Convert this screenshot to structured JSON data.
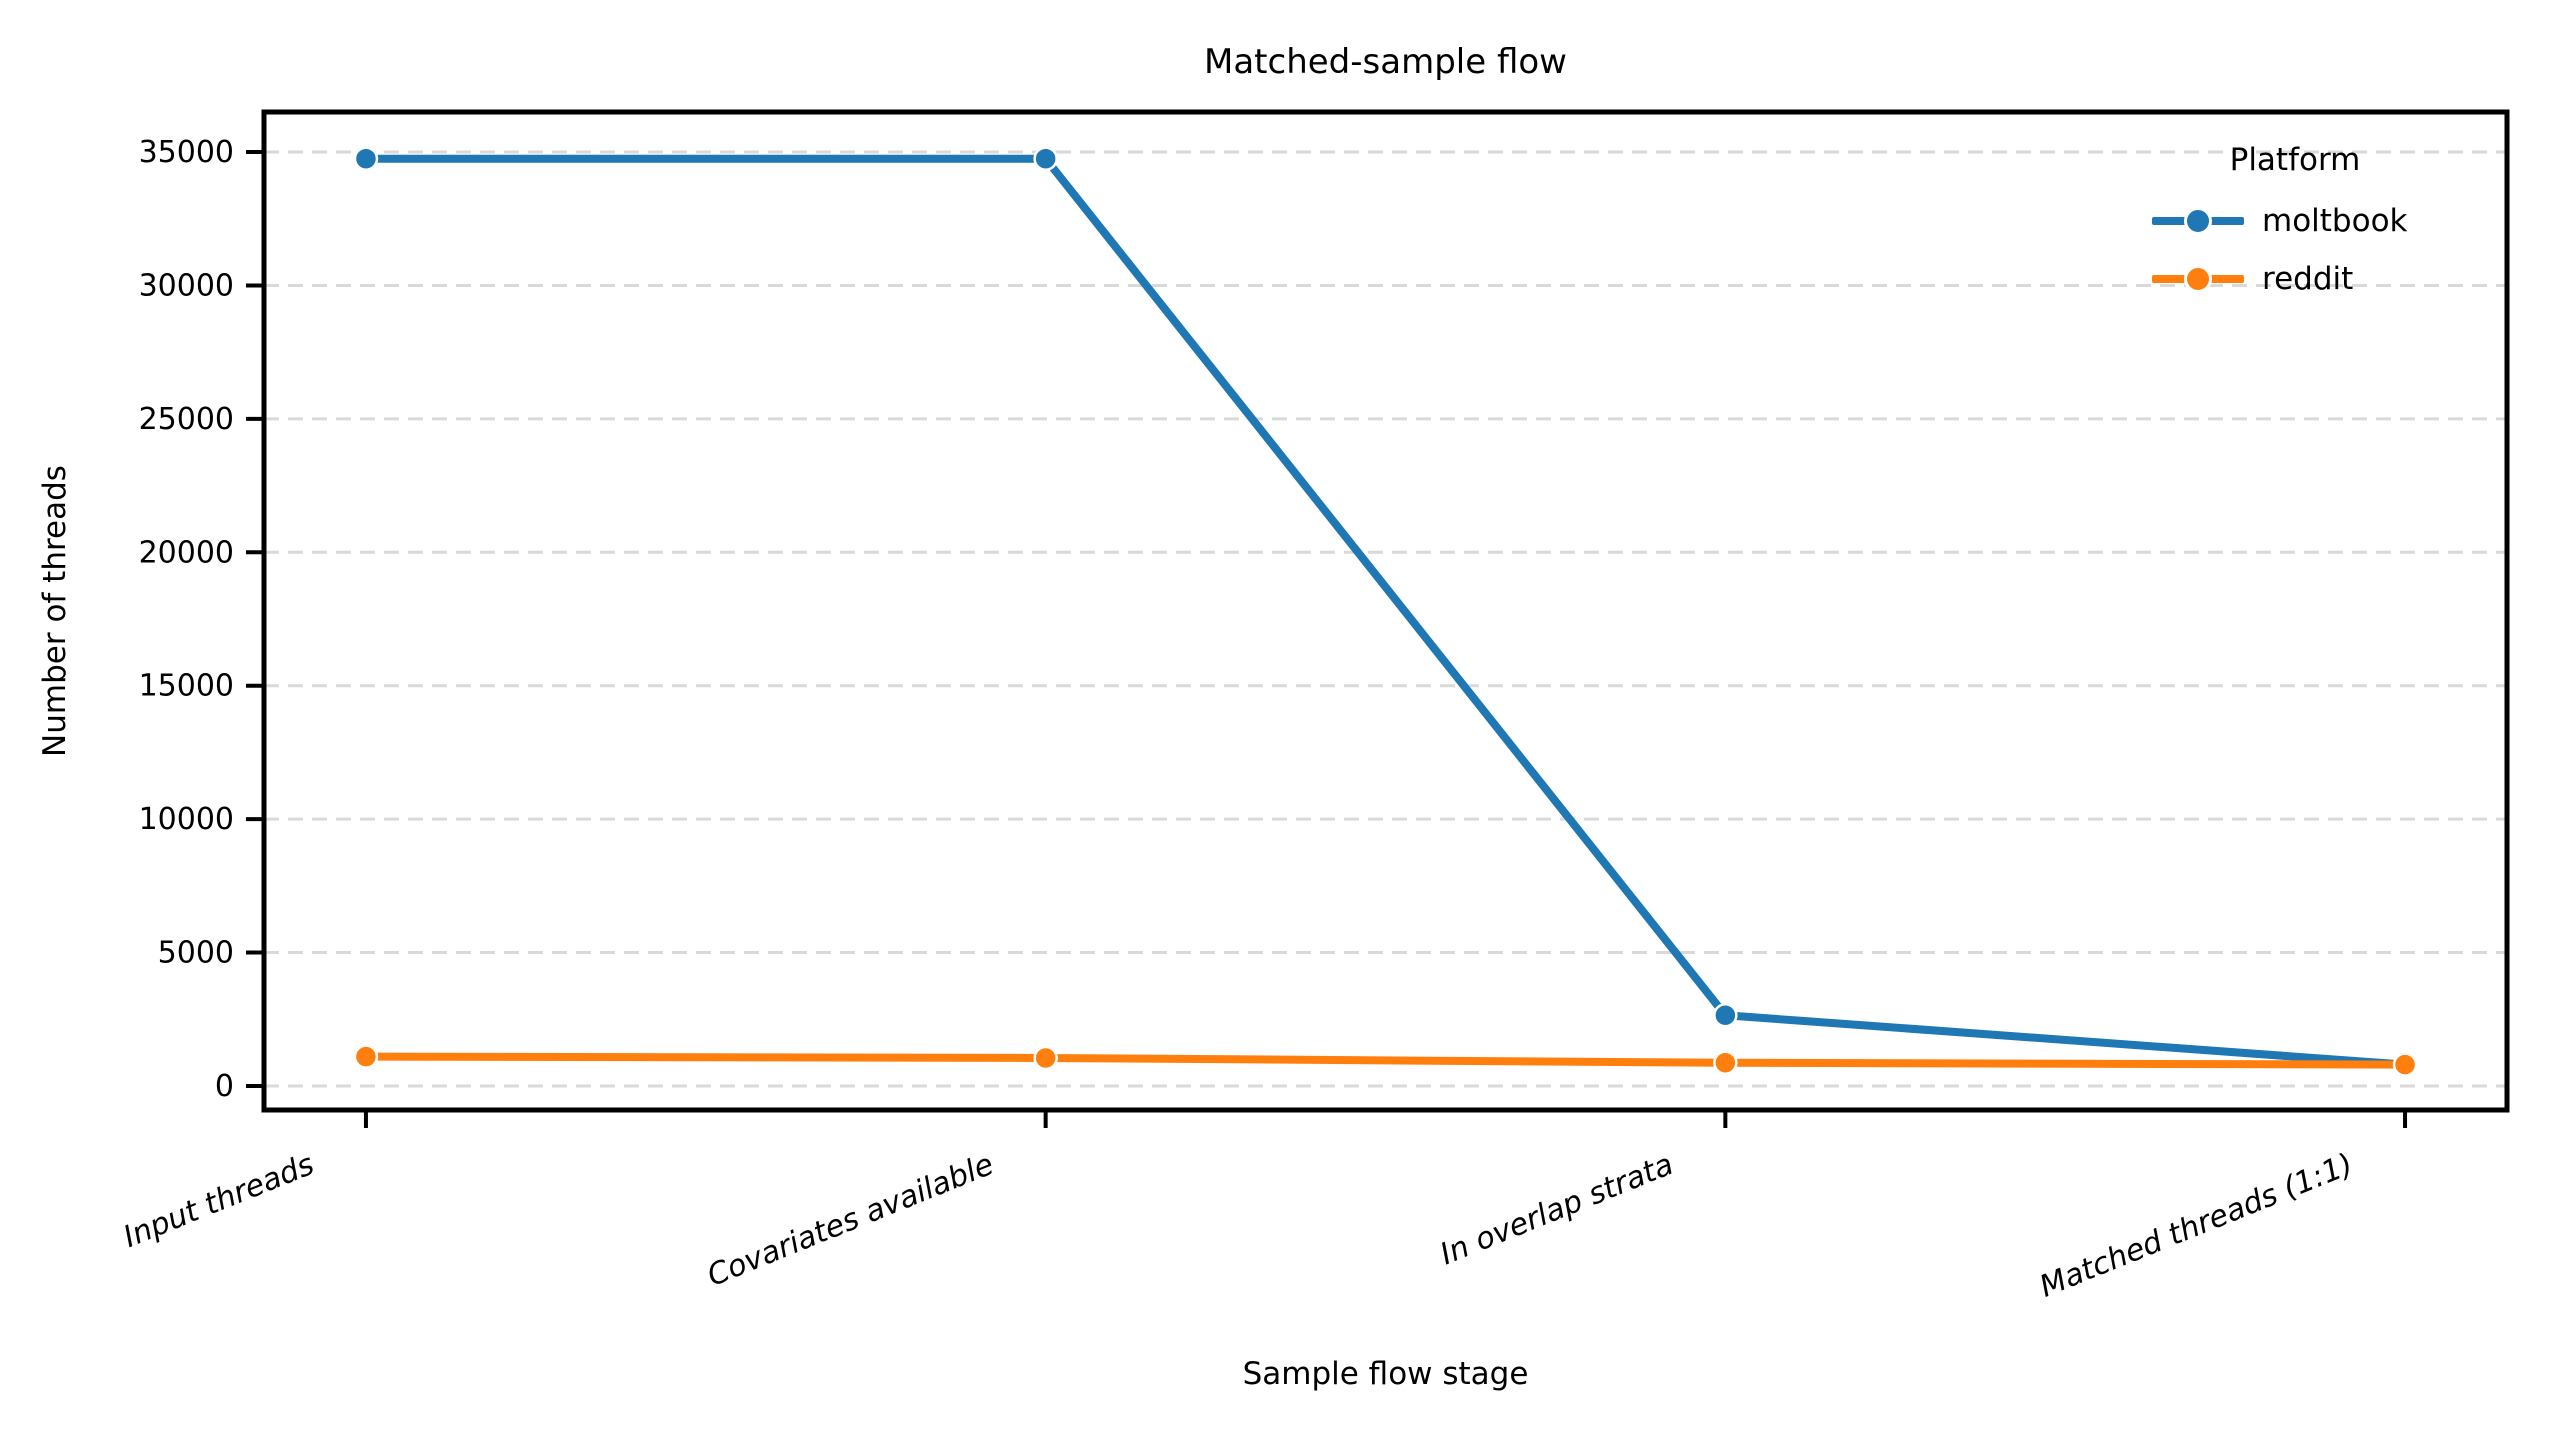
{
  "figure": {
    "background": "#ffffff",
    "text_color": "#000000"
  },
  "chart_data": {
    "type": "line",
    "title": "Matched-sample flow",
    "xlabel": "Sample flow stage",
    "ylabel": "Number of threads",
    "categories": [
      "Input threads",
      "Covariates available",
      "In overlap strata",
      "Matched threads (1:1)"
    ],
    "series": [
      {
        "name": "moltbook",
        "color": "#1f77b4",
        "values": [
          34750,
          34750,
          2650,
          800
        ]
      },
      {
        "name": "reddit",
        "color": "#ff7f0e",
        "values": [
          1100,
          1050,
          870,
          800
        ]
      }
    ],
    "legend": {
      "title": "Platform",
      "position": "upper right",
      "frame": false,
      "entries": [
        "moltbook",
        "reddit"
      ]
    },
    "yticks": [
      0,
      5000,
      10000,
      15000,
      20000,
      25000,
      30000,
      35000
    ],
    "ylim": [
      -900,
      36500
    ],
    "grid": {
      "axis": "y",
      "style": "dashed",
      "color": "#d9d9d9"
    },
    "marker": "circle",
    "x_tick_rotation_deg": 22,
    "x_tick_fontstyle": "italic",
    "spine_color": "#000000"
  }
}
